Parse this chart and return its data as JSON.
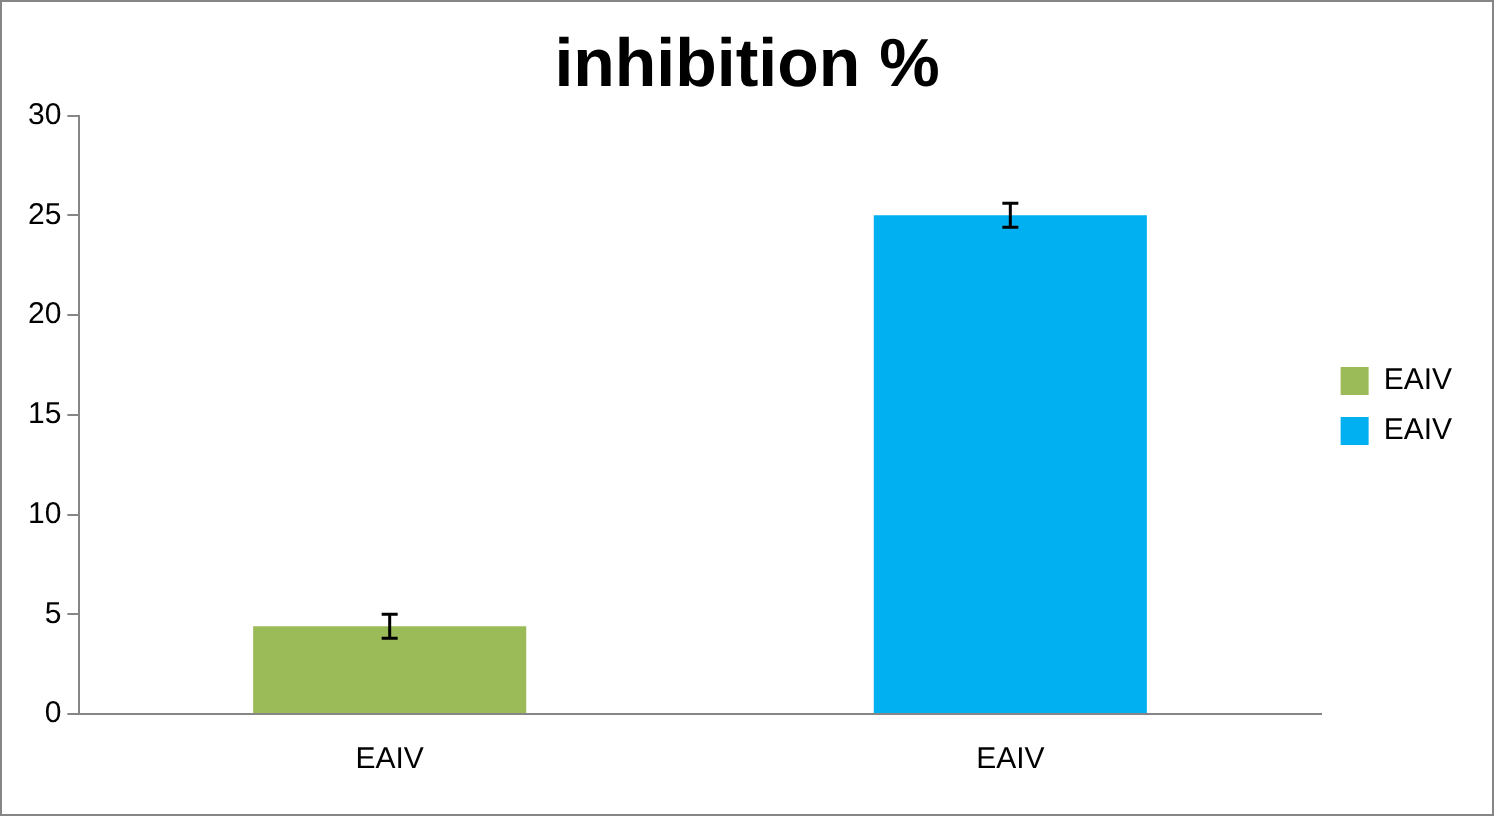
{
  "chart_data": {
    "type": "bar",
    "title": "inhibition %",
    "categories": [
      "EAIV",
      "EAIV"
    ],
    "series": [
      {
        "name": "EAIV",
        "color": "#9bbb59",
        "values": [
          4.4,
          null
        ],
        "errors": [
          0.6,
          null
        ]
      },
      {
        "name": "EAIV",
        "color": "#00b0f0",
        "values": [
          null,
          25
        ],
        "errors": [
          null,
          0.6
        ]
      }
    ],
    "ylim": [
      0,
      30
    ],
    "yticks": [
      0,
      5,
      10,
      15,
      20,
      25,
      30
    ],
    "grid": false,
    "legend": "right"
  }
}
